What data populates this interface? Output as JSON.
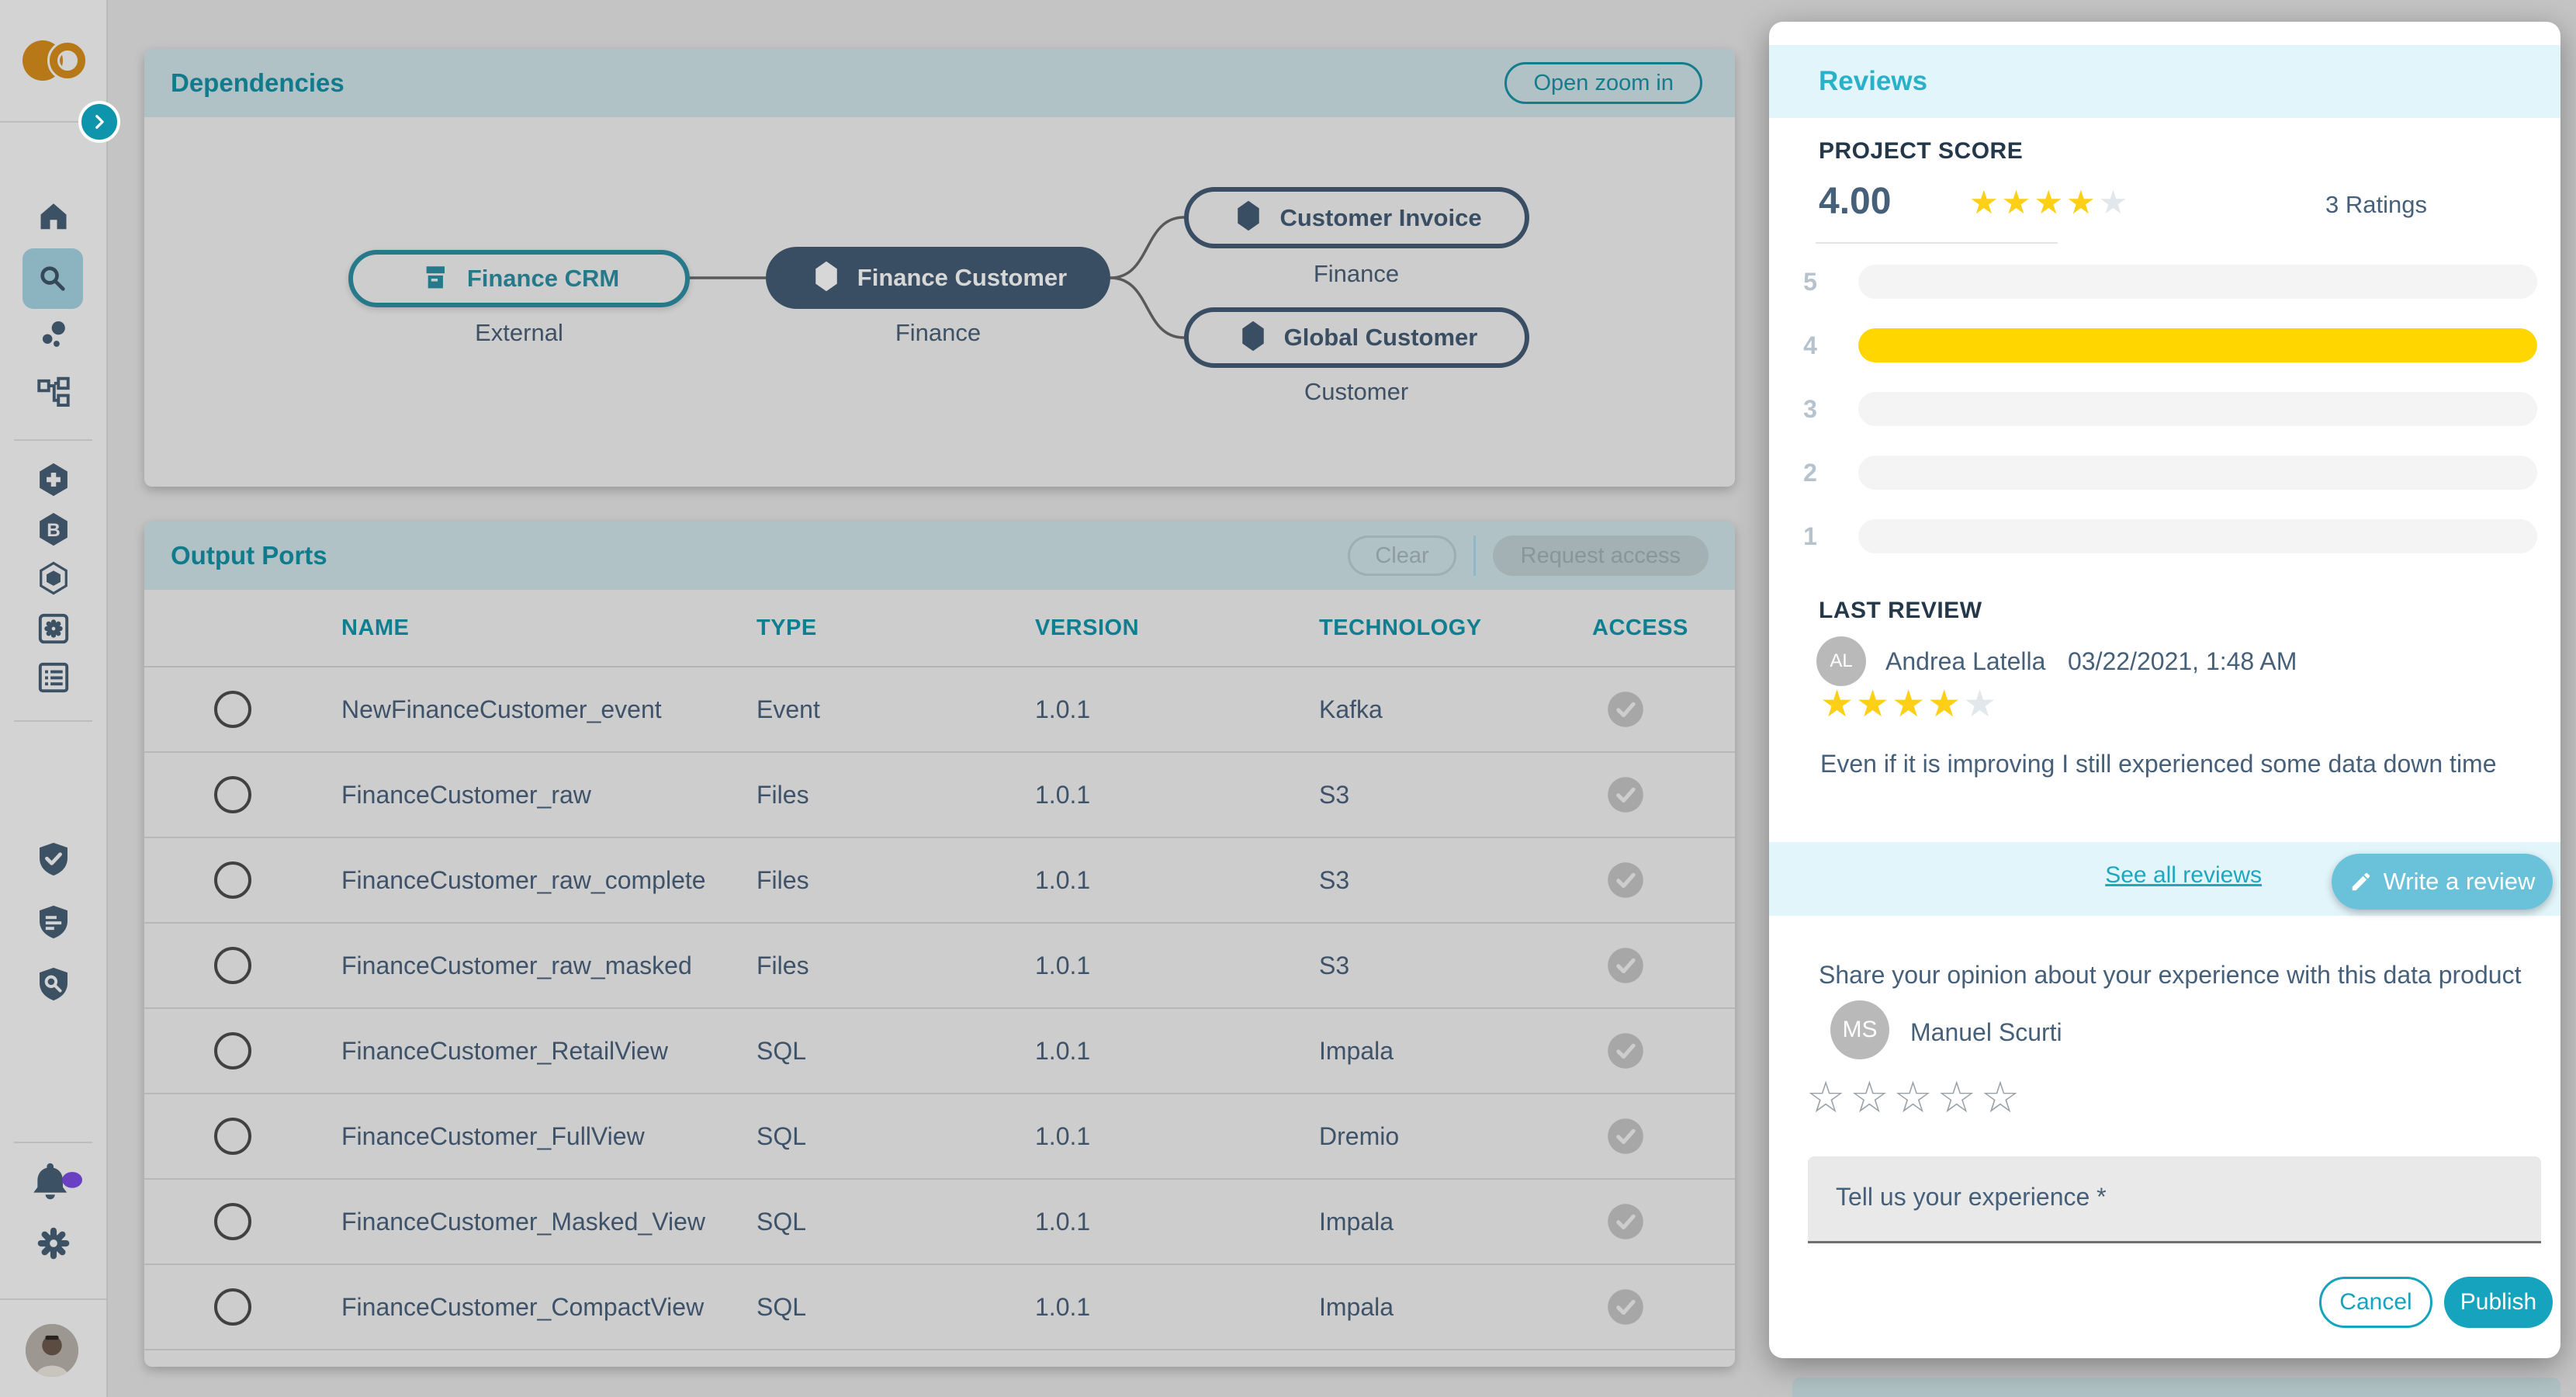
{
  "colors": {
    "accent_teal": "#14a0b8",
    "modal_accent": "#28b1c9",
    "bar_yellow": "#ffd600",
    "star_yellow": "#fdd017",
    "star_empty": "#e2e7eb",
    "star_outline_gray": "#9aa2a8",
    "slate": "#4a627d",
    "dark_navy": "#24384a",
    "node_dark": "#445d75",
    "node_teal": "#2e90a4",
    "notification_purple": "#7d4de7",
    "logo_orange": "#d98f1c"
  },
  "sidebar": {
    "icons": [
      "logo",
      "collapse-chevron",
      "home",
      "search",
      "bubbles",
      "tree",
      "hexagon-plus",
      "hexagon-b",
      "hexagon-outline",
      "square-gear",
      "square-list",
      "shield-check",
      "shield-doc",
      "shield-search",
      "bell",
      "settings-gear",
      "avatar"
    ],
    "active_item": "search",
    "notification_dot": true
  },
  "dependencies": {
    "title": "Dependencies",
    "open_zoom_label": "Open zoom in",
    "nodes": [
      {
        "label": "Finance CRM",
        "sublabel": "External",
        "variant": "teal-outline",
        "icon": "archive"
      },
      {
        "label": "Finance Customer",
        "sublabel": "Finance",
        "variant": "dark-filled",
        "icon": "hexagon"
      },
      {
        "label": "Customer Invoice",
        "sublabel": "Finance",
        "variant": "dark-outline",
        "icon": "hexagon"
      },
      {
        "label": "Global Customer",
        "sublabel": "Customer",
        "variant": "dark-outline",
        "icon": "hexagon"
      }
    ]
  },
  "output_ports": {
    "title": "Output Ports",
    "clear_label": "Clear",
    "request_access_label": "Request access",
    "columns": [
      "NAME",
      "TYPE",
      "VERSION",
      "TECHNOLOGY",
      "ACCESS"
    ],
    "rows": [
      {
        "name": "NewFinanceCustomer_event",
        "type": "Event",
        "version": "1.0.1",
        "technology": "Kafka"
      },
      {
        "name": "FinanceCustomer_raw",
        "type": "Files",
        "version": "1.0.1",
        "technology": "S3"
      },
      {
        "name": "FinanceCustomer_raw_complete",
        "type": "Files",
        "version": "1.0.1",
        "technology": "S3"
      },
      {
        "name": "FinanceCustomer_raw_masked",
        "type": "Files",
        "version": "1.0.1",
        "technology": "S3"
      },
      {
        "name": "FinanceCustomer_RetailView",
        "type": "SQL",
        "version": "1.0.1",
        "technology": "Impala"
      },
      {
        "name": "FinanceCustomer_FullView",
        "type": "SQL",
        "version": "1.0.1",
        "technology": "Dremio"
      },
      {
        "name": "FinanceCustomer_Masked_View",
        "type": "SQL",
        "version": "1.0.1",
        "technology": "Impala"
      },
      {
        "name": "FinanceCustomer_CompactView",
        "type": "SQL",
        "version": "1.0.1",
        "technology": "Impala"
      }
    ]
  },
  "reviews": {
    "title": "Reviews",
    "project_score_label": "PROJECT SCORE",
    "score": "4.00",
    "score_stars": 4,
    "stars_total": 5,
    "ratings_label": "3 Ratings",
    "distribution": [
      {
        "level": "5",
        "fraction": 0
      },
      {
        "level": "4",
        "fraction": 1
      },
      {
        "level": "3",
        "fraction": 0
      },
      {
        "level": "2",
        "fraction": 0
      },
      {
        "level": "1",
        "fraction": 0
      }
    ],
    "last_review_label": "LAST REVIEW",
    "last_review": {
      "initials": "AL",
      "author": "Andrea Latella",
      "date": "03/22/2021, 1:48 AM",
      "stars": 4,
      "text": "Even if it is improving I still experienced some data down time"
    },
    "see_all_label": "See all reviews",
    "write_review_label": "Write a review",
    "form": {
      "prompt": "Share your opinion about your experience with this data product",
      "user_initials": "MS",
      "user_name": "Manuel Scurti",
      "stars_selected": 0,
      "textarea_placeholder": "Tell us your experience *",
      "cancel_label": "Cancel",
      "publish_label": "Publish"
    }
  }
}
